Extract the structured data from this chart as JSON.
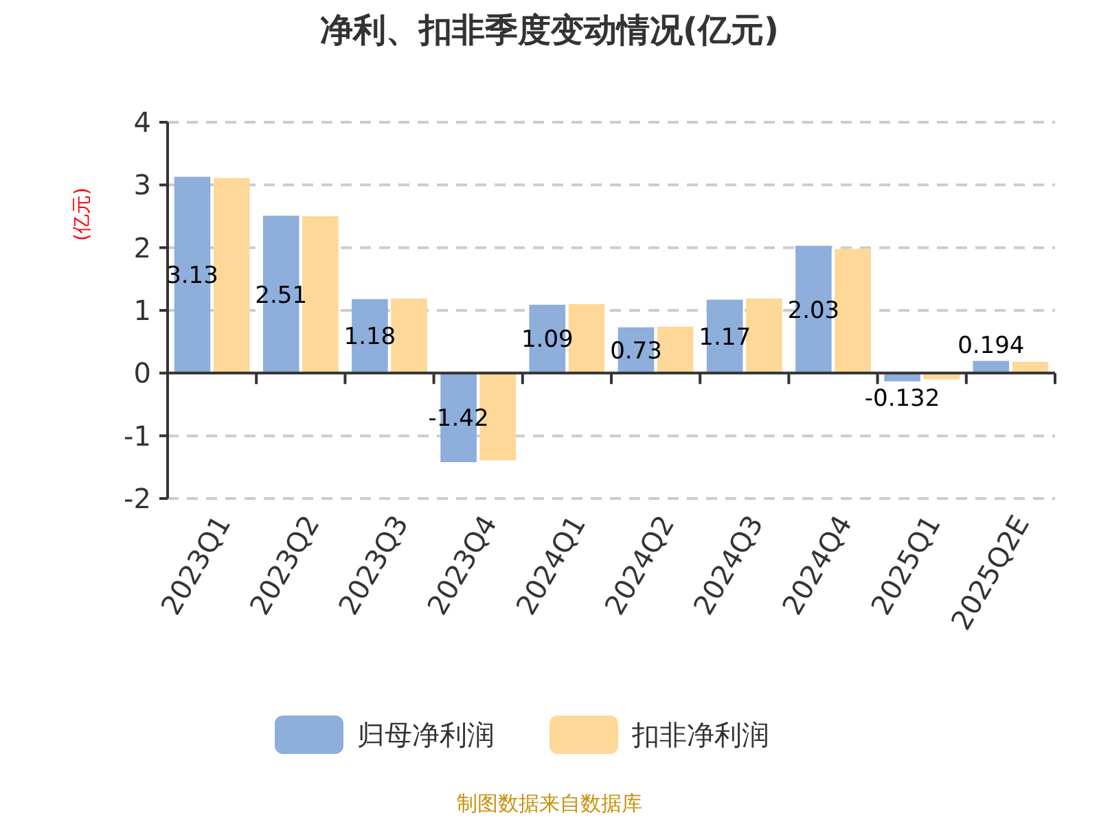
{
  "chart_data": {
    "type": "bar",
    "title": "净利、扣非季度变动情况(亿元)",
    "ylabel": "(亿元)",
    "categories": [
      "2023Q1",
      "2023Q2",
      "2023Q3",
      "2023Q4",
      "2024Q1",
      "2024Q2",
      "2024Q3",
      "2024Q4",
      "2025Q1",
      "2025Q2E"
    ],
    "series": [
      {
        "name": "归母净利润",
        "color": "#8eaedb",
        "values": [
          3.13,
          2.51,
          1.18,
          -1.42,
          1.09,
          0.73,
          1.17,
          2.03,
          -0.132,
          0.194
        ],
        "value_labels": [
          "3.13",
          "2.51",
          "1.18",
          "-1.42",
          "1.09",
          "0.73",
          "1.17",
          "2.03",
          "-0.132",
          "0.194"
        ]
      },
      {
        "name": "扣非净利润",
        "color": "#fed898",
        "values": [
          3.11,
          2.5,
          1.19,
          -1.39,
          1.1,
          0.74,
          1.19,
          1.98,
          -0.1,
          0.18
        ]
      }
    ],
    "ylim": [
      -2,
      4
    ],
    "yticks": [
      -2,
      -1,
      0,
      1,
      2,
      3,
      4
    ],
    "grid": "y",
    "legend": "bottom",
    "annotations": [
      "制图数据来自数据库"
    ]
  }
}
